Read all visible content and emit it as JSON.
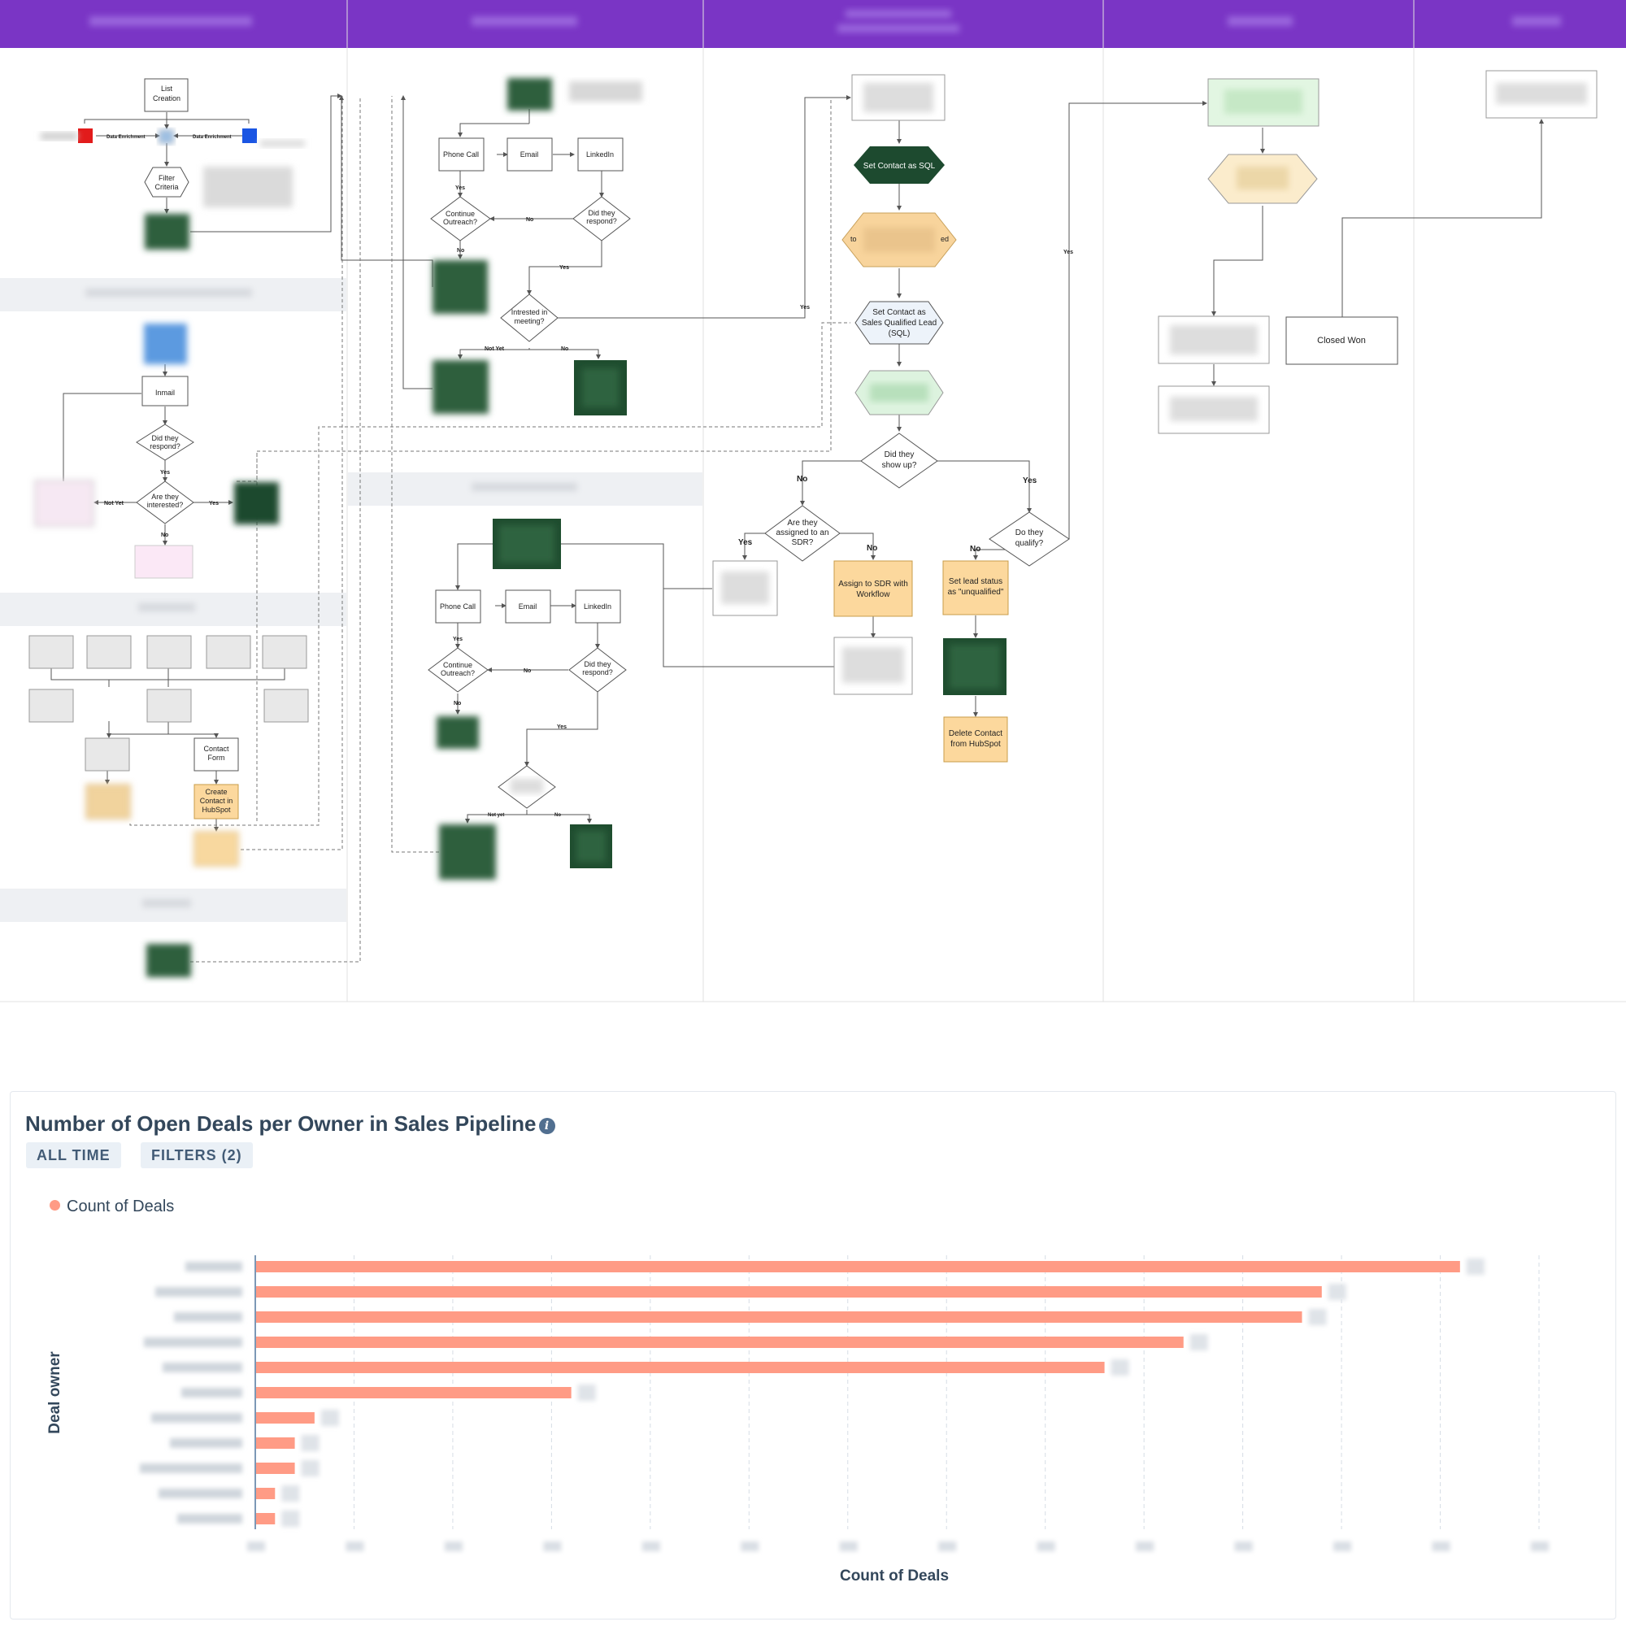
{
  "lanes": [
    {
      "header": ""
    },
    {
      "header": ""
    },
    {
      "header": ""
    },
    {
      "header": ""
    },
    {
      "header": ""
    }
  ],
  "flow": {
    "list_creation": "List Creation",
    "data_enrichment_left": "Data Enrichment",
    "data_enrichment_right": "Data Enrichment",
    "filter_criteria": "Filter Criteria",
    "inmail": "Inmail",
    "did_they_respond": "Did they respond?",
    "are_they_interested": "Are they interested?",
    "contact_form": "Contact Form",
    "create_contact": "Create Contact in HubSpot",
    "phone_call": "Phone Call",
    "email": "Email",
    "linkedin": "LinkedIn",
    "continue_outreach": "Continue Outreach?",
    "interested_in_meeting": "Intrested in meeting?",
    "set_contact_sql": "Set Contact as SQL",
    "set_contact_sales_qualified": "Set Contact as Sales Qualified Lead (SQL)",
    "did_they_show_up": "Did they show up?",
    "assigned_to_sdr": "Are they assigned to an SDR?",
    "assign_to_sdr": "Assign to SDR with Workflow",
    "do_they_qualify": "Do they qualify?",
    "set_lead_status": "Set lead status as \"unqualified\"",
    "delete_contact": "Delete Contact from HubSpot",
    "closed_won": "Closed Won",
    "yes": "Yes",
    "no": "No",
    "not_yet": "Not Yet",
    "not_yet_lower": "Not yet",
    "partial_to": "to",
    "partial_ed": "ed"
  },
  "dashboard": {
    "title": "Number of Open Deals per Owner in Sales Pipeline",
    "pill_time": "ALL TIME",
    "pill_filters": "FILTERS (2)",
    "legend_label": "Count of Deals"
  },
  "chart_data": {
    "type": "bar",
    "orientation": "horizontal",
    "title": "Number of Open Deals per Owner in Sales Pipeline",
    "xlabel": "Count of Deals",
    "ylabel": "Deal owner",
    "series": [
      {
        "name": "Count of Deals",
        "color": "#ff9b85",
        "values": [
          12.2,
          10.8,
          10.6,
          9.4,
          8.6,
          3.2,
          0.6,
          0.4,
          0.4,
          0.2,
          0.2
        ]
      }
    ],
    "categories": [
      "",
      "",
      "",
      "",
      "",
      "",
      "",
      "",
      "",
      "",
      ""
    ],
    "xlim": [
      0,
      13
    ],
    "gridlines": "vertical",
    "legend": "top-left"
  }
}
